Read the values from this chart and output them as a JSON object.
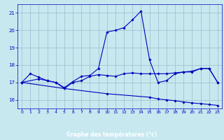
{
  "title": "Graphe des températures (°c)",
  "bg_color": "#c8e8f0",
  "line_color": "#0000bb",
  "grid_color": "#99bbcc",
  "label_bg": "#2255bb",
  "label_fg": "#ffffff",
  "ylim": [
    15.5,
    21.5
  ],
  "xlim": [
    -0.5,
    23.5
  ],
  "yticks": [
    16,
    17,
    18,
    19,
    20,
    21
  ],
  "xticks": [
    0,
    1,
    2,
    3,
    4,
    5,
    6,
    7,
    8,
    9,
    10,
    11,
    12,
    13,
    14,
    15,
    16,
    17,
    18,
    19,
    20,
    21,
    22,
    23
  ],
  "s1_x": [
    0,
    1,
    2,
    3,
    4,
    5,
    6,
    7,
    8,
    9,
    10,
    11,
    12,
    13,
    14,
    15,
    16,
    17,
    18,
    19,
    20,
    21,
    22,
    23
  ],
  "s1_y": [
    17.0,
    17.5,
    17.3,
    17.1,
    17.0,
    16.7,
    17.05,
    17.35,
    17.4,
    17.8,
    19.9,
    20.0,
    20.15,
    20.6,
    21.1,
    18.3,
    17.0,
    17.1,
    17.5,
    17.6,
    17.65,
    17.8,
    17.8,
    17.0
  ],
  "s2_x": [
    0,
    2,
    3,
    4,
    5,
    6,
    7,
    8,
    9,
    10,
    11,
    12,
    13,
    14,
    15,
    16,
    17,
    18,
    19,
    20,
    21,
    22,
    23
  ],
  "s2_y": [
    17.0,
    17.2,
    17.1,
    17.0,
    16.65,
    17.0,
    17.1,
    17.35,
    17.45,
    17.4,
    17.35,
    17.5,
    17.55,
    17.5,
    17.5,
    17.5,
    17.5,
    17.55,
    17.6,
    17.6,
    17.8,
    17.8,
    17.0
  ],
  "s3_x": [
    0,
    5,
    10,
    15,
    16,
    17,
    18,
    19,
    20,
    21,
    22,
    23
  ],
  "s3_y": [
    17.0,
    16.65,
    16.35,
    16.15,
    16.05,
    16.0,
    15.95,
    15.88,
    15.82,
    15.78,
    15.73,
    15.68
  ]
}
